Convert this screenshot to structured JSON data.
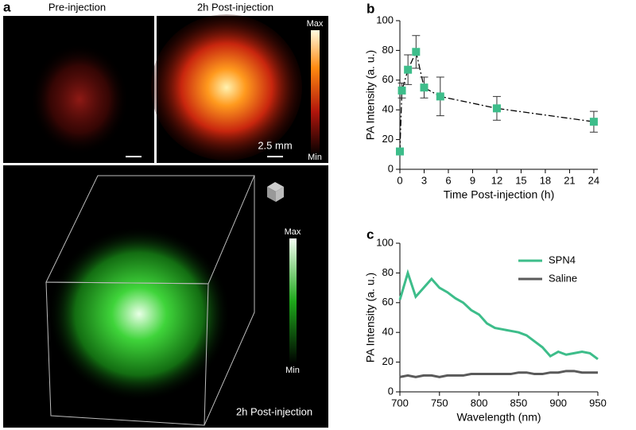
{
  "panel_a": {
    "label": "a",
    "pre_title": "Pre-injection",
    "post_title": "2h Post-injection",
    "colorbar_max": "Max",
    "colorbar_min": "Min",
    "scale_bar": "2.5 mm",
    "volume_colorbar_max": "Max",
    "volume_colorbar_min": "Min",
    "volume_caption": "2h Post-injection"
  },
  "chart_data": [
    {
      "type": "scatter",
      "label": "b",
      "xlabel": "Time Post-injection (h)",
      "ylabel": "PA Intensity (a. u.)",
      "x": [
        0,
        0.25,
        1,
        2,
        3,
        5,
        12,
        24
      ],
      "values": [
        12,
        53,
        67,
        79,
        55,
        49,
        41,
        32
      ],
      "errors": [
        2,
        5,
        10,
        11,
        7,
        13,
        8,
        7
      ],
      "color": "#3dbd8a",
      "line": "dash-dot",
      "xlim": [
        0,
        24.5
      ],
      "xticks": [
        0,
        3,
        6,
        9,
        12,
        15,
        18,
        21,
        24
      ],
      "ylim": [
        0,
        100
      ],
      "yticks": [
        0,
        20,
        40,
        60,
        80,
        100
      ]
    },
    {
      "type": "line",
      "label": "c",
      "xlabel": "Wavelength (nm)",
      "ylabel": "PA Intensity (a. u.)",
      "legend": "upper right",
      "x": [
        700,
        710,
        720,
        730,
        740,
        750,
        760,
        770,
        780,
        790,
        800,
        810,
        820,
        830,
        840,
        850,
        860,
        870,
        880,
        890,
        900,
        910,
        920,
        930,
        940,
        950
      ],
      "series": [
        {
          "name": "SPN4",
          "color": "#3dbd8a",
          "values": [
            62,
            80,
            64,
            70,
            76,
            70,
            67,
            63,
            60,
            55,
            52,
            46,
            43,
            42,
            41,
            40,
            38,
            34,
            30,
            24,
            27,
            25,
            26,
            27,
            26,
            22
          ]
        },
        {
          "name": "Saline",
          "color": "#5a5a5a",
          "values": [
            10,
            11,
            10,
            11,
            11,
            10,
            11,
            11,
            11,
            12,
            12,
            12,
            12,
            12,
            12,
            13,
            13,
            12,
            12,
            13,
            13,
            14,
            14,
            13,
            13,
            13
          ]
        }
      ],
      "xlim": [
        700,
        950
      ],
      "xticks": [
        700,
        750,
        800,
        850,
        900,
        950
      ],
      "ylim": [
        0,
        100
      ],
      "yticks": [
        0,
        20,
        40,
        60,
        80,
        100
      ]
    }
  ]
}
